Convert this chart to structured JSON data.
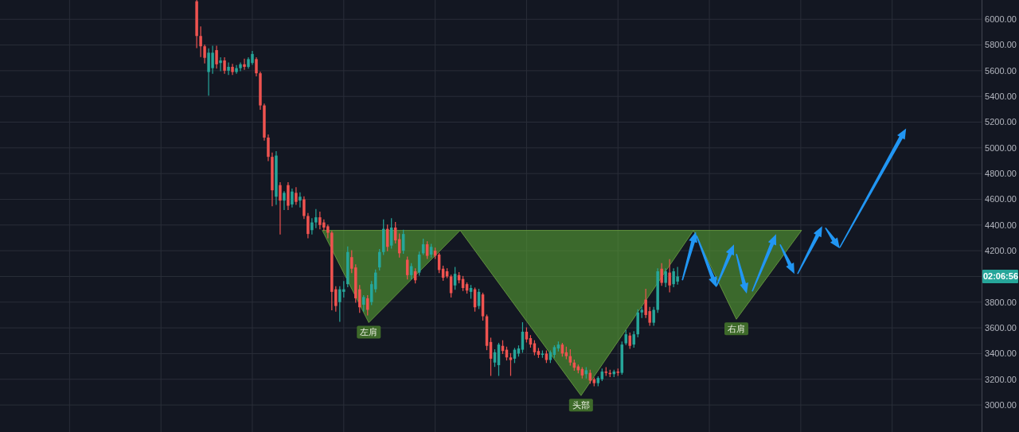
{
  "chart_data": {
    "type": "candlestick",
    "categories": [
      null,
      null,
      null,
      null,
      null,
      null,
      null,
      null,
      null,
      null,
      null,
      null,
      null,
      null,
      null,
      null,
      null,
      null,
      null,
      null,
      null,
      null,
      null,
      null,
      null,
      null,
      null,
      null,
      null,
      null,
      null,
      null,
      null,
      null,
      null,
      null,
      null,
      null,
      null,
      null,
      null,
      null,
      null,
      null,
      null,
      null,
      null,
      null,
      null,
      null,
      null,
      null,
      null,
      null,
      null,
      null,
      null,
      null,
      null,
      null,
      null,
      null,
      null,
      null,
      null,
      null,
      null,
      null,
      null,
      null,
      null,
      null,
      null,
      null,
      null,
      null,
      null,
      null,
      null,
      null,
      null,
      null,
      null,
      null,
      null,
      null,
      null,
      null,
      null,
      null,
      null,
      null,
      null,
      null,
      null,
      null,
      null,
      null,
      null,
      null,
      null,
      null,
      null,
      null,
      null,
      null,
      null,
      null,
      null,
      null,
      null,
      null,
      null,
      null,
      null,
      null,
      null,
      null,
      null,
      null,
      null,
      null,
      null,
      null,
      null,
      null,
      null,
      null,
      null,
      null,
      null,
      null,
      null,
      null,
      null,
      null,
      null,
      null,
      null,
      null,
      null,
      null,
      null,
      null,
      null,
      null,
      null,
      null,
      null,
      null,
      null,
      null,
      null,
      null,
      null,
      null,
      null,
      null,
      null,
      null,
      null,
      null,
      null,
      null,
      null,
      null,
      null,
      null,
      null,
      null,
      null,
      null,
      null,
      null,
      null,
      null,
      null,
      null,
      null,
      null,
      null,
      null,
      null,
      null,
      null,
      null,
      null,
      null,
      null,
      null,
      null,
      null,
      null,
      null,
      null,
      null,
      null,
      null,
      null,
      null,
      null,
      null,
      null,
      null,
      null,
      null,
      null,
      null,
      null,
      null,
      null,
      null,
      null,
      null,
      null,
      null,
      null,
      null,
      null,
      null,
      null,
      null,
      null,
      null,
      null,
      null,
      null,
      null,
      null,
      null,
      null,
      null,
      null,
      null,
      null,
      null,
      null,
      null,
      null,
      null,
      null,
      null,
      null,
      null,
      null,
      null,
      null
    ],
    "ohlc": [
      null,
      null,
      null,
      null,
      null,
      null,
      null,
      null,
      null,
      null,
      null,
      null,
      null,
      null,
      null,
      null,
      null,
      null,
      null,
      null,
      null,
      null,
      null,
      null,
      null,
      null,
      null,
      null,
      null,
      null,
      null,
      null,
      null,
      null,
      null,
      null,
      null,
      null,
      null,
      null,
      null,
      null,
      null,
      null,
      null,
      null,
      null,
      null,
      null,
      [
        6140,
        6150,
        5780,
        5870
      ],
      [
        5870,
        5940,
        5710,
        5790
      ],
      [
        5790,
        5800,
        5660,
        5700
      ],
      [
        5590,
        5770,
        5410,
        5740
      ],
      [
        5620,
        5790,
        5580,
        5740
      ],
      [
        5760,
        5790,
        5620,
        5650
      ],
      [
        5660,
        5700,
        5600,
        5680
      ],
      [
        5680,
        5700,
        5580,
        5600
      ],
      [
        5600,
        5660,
        5570,
        5630
      ],
      [
        5630,
        5650,
        5570,
        5590
      ],
      [
        5590,
        5640,
        5580,
        5620
      ],
      [
        5620,
        5660,
        5600,
        5650
      ],
      [
        5650,
        5690,
        5610,
        5630
      ],
      [
        5630,
        5700,
        5620,
        5690
      ],
      [
        5660,
        5750,
        5650,
        5730
      ],
      [
        5690,
        5700,
        5560,
        5580
      ],
      [
        5580,
        5590,
        5300,
        5330
      ],
      [
        5330,
        5340,
        5060,
        5080
      ],
      [
        5080,
        5100,
        4900,
        4930
      ],
      [
        4930,
        4960,
        4550,
        4670
      ],
      [
        4620,
        4970,
        4560,
        4940
      ],
      [
        4710,
        4730,
        4330,
        4590
      ],
      [
        4590,
        4660,
        4520,
        4650
      ],
      [
        4710,
        4730,
        4520,
        4550
      ],
      [
        4560,
        4680,
        4540,
        4660
      ],
      [
        4650,
        4690,
        4560,
        4580
      ],
      [
        4590,
        4650,
        4540,
        4620
      ],
      [
        4600,
        4620,
        4450,
        4470
      ],
      [
        4470,
        4490,
        4300,
        4330
      ],
      [
        4360,
        4450,
        4330,
        4420
      ],
      [
        4420,
        4520,
        4380,
        4460
      ],
      [
        4460,
        4500,
        4370,
        4400
      ],
      [
        4420,
        4440,
        4360,
        4380
      ],
      [
        4390,
        4400,
        4300,
        4340
      ],
      [
        4340,
        4350,
        3740,
        3880
      ],
      [
        3900,
        3920,
        3730,
        3770
      ],
      [
        3800,
        3920,
        3650,
        3900
      ],
      [
        3880,
        3960,
        3840,
        3900
      ],
      [
        3940,
        4230,
        3920,
        4190
      ],
      [
        4150,
        4200,
        4030,
        4060
      ],
      [
        4070,
        4090,
        3800,
        3830
      ],
      [
        3900,
        3930,
        3720,
        3760
      ],
      [
        3780,
        3850,
        3730,
        3840
      ],
      [
        3830,
        3850,
        3700,
        3740
      ],
      [
        3800,
        3960,
        3780,
        3940
      ],
      [
        3900,
        4050,
        3880,
        4030
      ],
      [
        4070,
        4210,
        4050,
        4190
      ],
      [
        4190,
        4440,
        4170,
        4370
      ],
      [
        4370,
        4400,
        4200,
        4230
      ],
      [
        4240,
        4450,
        4220,
        4380
      ],
      [
        4380,
        4420,
        4260,
        4280
      ],
      [
        4290,
        4330,
        4150,
        4180
      ],
      [
        4200,
        4360,
        4180,
        4330
      ],
      [
        4130,
        4150,
        3980,
        4010
      ],
      [
        4010,
        4100,
        3980,
        4080
      ],
      [
        4040,
        4060,
        3950,
        3970
      ],
      [
        4030,
        4190,
        4010,
        4170
      ],
      [
        4180,
        4290,
        4170,
        4250
      ],
      [
        4250,
        4270,
        4140,
        4160
      ],
      [
        4170,
        4250,
        4150,
        4230
      ],
      [
        4200,
        4220,
        4140,
        4160
      ],
      [
        4170,
        4180,
        4030,
        4050
      ],
      [
        4060,
        4080,
        3970,
        3990
      ],
      [
        4040,
        4060,
        3990,
        4000
      ],
      [
        4000,
        4010,
        3840,
        3870
      ],
      [
        3930,
        4070,
        3900,
        4020
      ],
      [
        4010,
        4030,
        3950,
        3970
      ],
      [
        3980,
        4000,
        3890,
        3910
      ],
      [
        3940,
        3950,
        3870,
        3890
      ],
      [
        3880,
        3930,
        3830,
        3910
      ],
      [
        3900,
        3910,
        3730,
        3760
      ],
      [
        3770,
        3900,
        3750,
        3880
      ],
      [
        3860,
        3870,
        3660,
        3690
      ],
      [
        3690,
        3700,
        3430,
        3460
      ],
      [
        3490,
        3520,
        3230,
        3360
      ],
      [
        3330,
        3430,
        3300,
        3410
      ],
      [
        3310,
        3480,
        3230,
        3470
      ],
      [
        3460,
        3500,
        3400,
        3420
      ],
      [
        3430,
        3450,
        3350,
        3370
      ],
      [
        3370,
        3400,
        3230,
        3350
      ],
      [
        3360,
        3440,
        3330,
        3430
      ],
      [
        3400,
        3460,
        3380,
        3440
      ],
      [
        3430,
        3640,
        3410,
        3570
      ],
      [
        3570,
        3600,
        3490,
        3510
      ],
      [
        3520,
        3540,
        3450,
        3470
      ],
      [
        3480,
        3500,
        3390,
        3410
      ],
      [
        3420,
        3440,
        3370,
        3390
      ],
      [
        3390,
        3420,
        3370,
        3400
      ],
      [
        3400,
        3420,
        3330,
        3350
      ],
      [
        3350,
        3420,
        3330,
        3410
      ],
      [
        3390,
        3460,
        3370,
        3450
      ],
      [
        3440,
        3490,
        3420,
        3470
      ],
      [
        3470,
        3480,
        3380,
        3400
      ],
      [
        3410,
        3450,
        3360,
        3380
      ],
      [
        3380,
        3430,
        3310,
        3330
      ],
      [
        3330,
        3350,
        3270,
        3290
      ],
      [
        3300,
        3310,
        3250,
        3270
      ],
      [
        3280,
        3290,
        3210,
        3230
      ],
      [
        3240,
        3290,
        3210,
        3270
      ],
      [
        3250,
        3270,
        3170,
        3190
      ],
      [
        3200,
        3210,
        3150,
        3170
      ],
      [
        3170,
        3220,
        3150,
        3210
      ],
      [
        3200,
        3280,
        3190,
        3260
      ],
      [
        3260,
        3290,
        3230,
        3250
      ],
      [
        3250,
        3270,
        3220,
        3240
      ],
      [
        3240,
        3270,
        3220,
        3260
      ],
      [
        3260,
        3280,
        3230,
        3250
      ],
      [
        3250,
        3490,
        3240,
        3470
      ],
      [
        3480,
        3580,
        3470,
        3550
      ],
      [
        3540,
        3560,
        3440,
        3460
      ],
      [
        3470,
        3570,
        3450,
        3550
      ],
      [
        3550,
        3740,
        3530,
        3720
      ],
      [
        3720,
        3760,
        3680,
        3740
      ],
      [
        3820,
        3900,
        3680,
        3700
      ],
      [
        3730,
        3760,
        3620,
        3640
      ],
      [
        3640,
        3760,
        3620,
        3740
      ],
      [
        3740,
        4060,
        3720,
        4040
      ],
      [
        4060,
        4100,
        3930,
        3950
      ],
      [
        3950,
        4060,
        3920,
        4040
      ],
      [
        4030,
        4130,
        3880,
        3930
      ],
      [
        3940,
        4060,
        3920,
        4040
      ],
      [
        3960,
        4070,
        3940,
        4000
      ],
      null,
      null,
      null,
      null,
      null,
      null,
      null,
      null,
      null,
      null,
      null,
      null,
      null,
      null,
      null,
      null,
      null,
      null,
      null,
      null,
      null,
      null,
      null,
      null,
      null,
      null,
      null,
      null,
      null,
      null,
      null,
      null,
      null,
      null,
      null,
      null,
      null,
      null,
      null,
      null,
      null,
      null,
      null,
      null,
      null,
      null,
      null,
      null,
      null,
      null,
      null,
      null,
      null,
      null,
      null,
      null,
      null,
      null,
      null,
      null,
      null,
      null,
      null,
      null,
      null,
      null,
      null,
      null,
      null,
      null,
      null,
      null,
      null,
      null,
      null,
      null
    ],
    "colors": [
      null,
      null,
      null,
      null,
      null,
      null,
      null,
      null,
      null,
      null,
      null,
      null,
      null,
      null,
      null,
      null,
      null,
      null,
      null,
      null,
      null,
      null,
      null,
      null,
      null,
      null,
      null,
      null,
      null,
      null,
      null,
      null,
      null,
      null,
      null,
      null,
      null,
      null,
      null,
      null,
      null,
      null,
      null,
      null,
      null,
      null,
      null,
      null,
      null,
      "#ef5350",
      "#ef5350",
      "#ef5350",
      "#26a69a",
      "#26a69a",
      "#ef5350",
      "#26a69a",
      "#ef5350",
      "#26a69a",
      "#ef5350",
      "#26a69a",
      "#26a69a",
      "#ef5350",
      "#26a69a",
      "#26a69a",
      "#ef5350",
      "#ef5350",
      "#ef5350",
      "#ef5350",
      "#ef5350",
      "#26a69a",
      "#ef5350",
      "#26a69a",
      "#ef5350",
      "#26a69a",
      "#ef5350",
      "#26a69a",
      "#ef5350",
      "#ef5350",
      "#26a69a",
      "#26a69a",
      "#ef5350",
      "#ef5350",
      "#ef5350",
      "#ef5350",
      "#ef5350",
      "#26a69a",
      "#26a69a",
      "#26a69a",
      "#ef5350",
      "#ef5350",
      "#ef5350",
      "#26a69a",
      "#ef5350",
      "#26a69a",
      "#26a69a",
      "#26a69a",
      "#26a69a",
      "#ef5350",
      "#26a69a",
      "#ef5350",
      "#ef5350",
      "#26a69a",
      "#ef5350",
      "#26a69a",
      "#ef5350",
      "#26a69a",
      "#26a69a",
      "#ef5350",
      "#26a69a",
      "#ef5350",
      "#ef5350",
      "#ef5350",
      "#ef5350",
      "#ef5350",
      "#26a69a",
      "#ef5350",
      "#ef5350",
      "#ef5350",
      "#26a69a",
      "#ef5350",
      "#26a69a",
      "#ef5350",
      "#ef5350",
      "#ef5350",
      "#26a69a",
      "#26a69a",
      "#ef5350",
      "#ef5350",
      "#ef5350",
      "#26a69a",
      "#26a69a",
      "#26a69a",
      "#ef5350",
      "#ef5350",
      "#ef5350",
      "#ef5350",
      "#26a69a",
      "#ef5350",
      "#26a69a",
      "#26a69a",
      "#26a69a",
      "#ef5350",
      "#ef5350",
      "#ef5350",
      "#ef5350",
      "#ef5350",
      "#ef5350",
      "#26a69a",
      "#ef5350",
      "#ef5350",
      "#26a69a",
      "#26a69a",
      "#ef5350",
      "#ef5350",
      "#26a69a",
      "#ef5350",
      "#26a69a",
      "#26a69a",
      "#ef5350",
      "#26a69a",
      "#26a69a",
      "#26a69a",
      "#ef5350",
      "#ef5350",
      "#26a69a",
      "#26a69a",
      "#ef5350",
      "#26a69a",
      "#ef5350",
      "#26a69a",
      "#26a69a",
      null,
      null,
      null,
      null,
      null,
      null,
      null,
      null,
      null,
      null,
      null,
      null,
      null,
      null,
      null,
      null,
      null,
      null,
      null,
      null,
      null,
      null,
      null,
      null,
      null,
      null,
      null,
      null,
      null,
      null,
      null,
      null,
      null,
      null,
      null,
      null,
      null,
      null,
      null,
      null,
      null,
      null,
      null,
      null,
      null,
      null,
      null,
      null,
      null,
      null,
      null,
      null,
      null,
      null,
      null,
      null,
      null,
      null,
      null,
      null,
      null,
      null,
      null,
      null,
      null,
      null,
      null,
      null,
      null,
      null,
      null,
      null,
      null,
      null,
      null,
      null
    ],
    "ylim": [
      2790,
      6150
    ],
    "yticks": [
      {
        "value": 3000,
        "label": "3000.00"
      },
      {
        "value": 3200,
        "label": "3200.00"
      },
      {
        "value": 3400,
        "label": "3400.00"
      },
      {
        "value": 3600,
        "label": "3600.00"
      },
      {
        "value": 3800,
        "label": "3800.00"
      },
      {
        "value": 4000,
        "label": null
      },
      {
        "value": 4200,
        "label": "4200.00"
      },
      {
        "value": 4400,
        "label": "4400.00"
      },
      {
        "value": 4600,
        "label": "4600.00"
      },
      {
        "value": 4800,
        "label": "4800.00"
      },
      {
        "value": 5000,
        "label": "5000.00"
      },
      {
        "value": 5200,
        "label": "5200.00"
      },
      {
        "value": 5400,
        "label": "5400.00"
      },
      {
        "value": 5600,
        "label": "5600.00"
      },
      {
        "value": 5800,
        "label": "5800.00"
      },
      {
        "value": 6000,
        "label": "6000.00"
      }
    ],
    "grid": true,
    "tick_labels": "y",
    "annotations": [
      "左肩",
      "头部",
      "右肩",
      "02:06:56"
    ]
  }
}
